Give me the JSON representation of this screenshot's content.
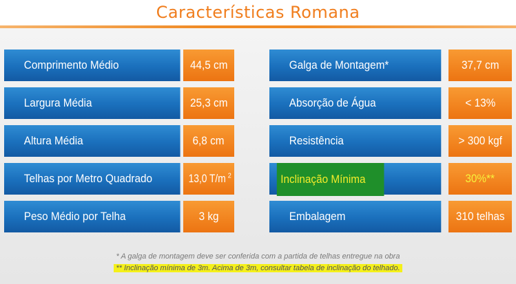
{
  "title": "Características Romana",
  "left_rows": [
    {
      "label": "Comprimento Médio",
      "value": "44,5 cm"
    },
    {
      "label": "Largura Média",
      "value": "25,3 cm"
    },
    {
      "label": "Altura Média",
      "value": "6,8 cm"
    },
    {
      "label": "Telhas por Metro Quadrado",
      "value": "13,0 T/m",
      "value_sup": "2"
    },
    {
      "label": "Peso Médio por Telha",
      "value": "3 kg"
    }
  ],
  "right_rows": [
    {
      "label": "Galga de Montagem*",
      "value": "37,7 cm"
    },
    {
      "label": "Absorção de Água",
      "value": "< 13%"
    },
    {
      "label": "Resistência",
      "value": "> 300 kgf"
    },
    {
      "label": "Inclinação Mínima",
      "value": "30%**"
    },
    {
      "label": "Embalagem",
      "value": "310 telhas"
    }
  ],
  "notes": {
    "galga": "* A galga de montagem deve ser conferida com a partida de telhas entregue na obra",
    "inclinacao": "** Inclinação mínima de 3m. Acima de 3m, consultar tabela de inclinação do telhado."
  },
  "colors": {
    "title": "#f07e1e",
    "blue": "#1a6fbc",
    "orange": "#f28520",
    "highlight_green": "#1f8f2a",
    "highlight_yellow": "#f4f01a"
  }
}
